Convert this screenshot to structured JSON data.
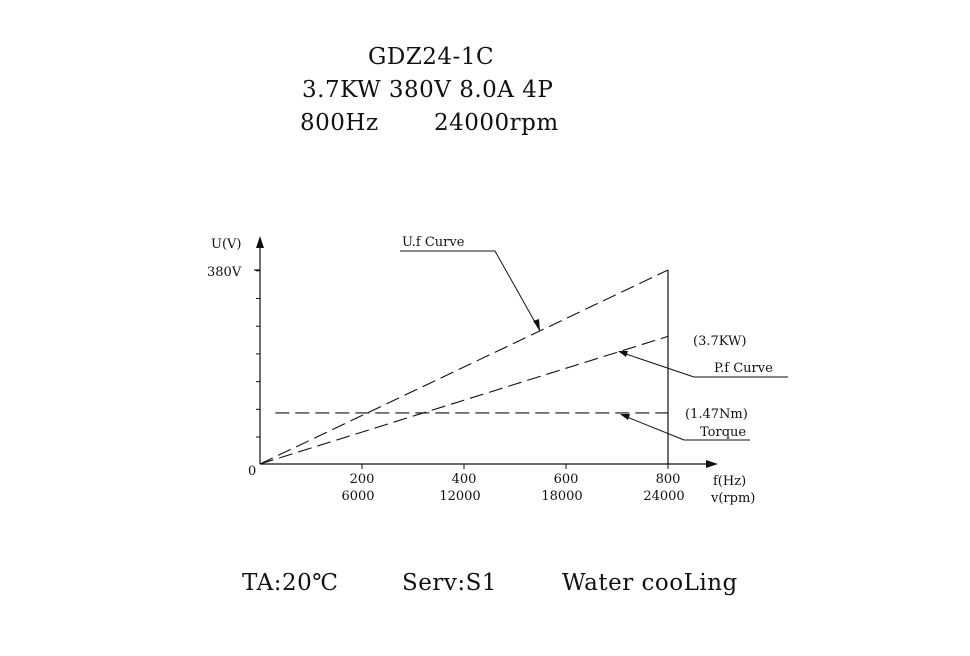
{
  "header": {
    "model": "GDZ24-1C",
    "spec": "3.7KW 380V 8.0A 4P",
    "frequency": "800Hz",
    "speed": "24000rpm"
  },
  "footer": {
    "ambient": "TA:20℃",
    "service": "Serv:S1",
    "cooling": "Water cooLing"
  },
  "chart_data": {
    "type": "line",
    "ylabel": "U(V)",
    "y_tick_label": "380V",
    "origin_label": "0",
    "x_frequency": [
      200,
      400,
      600,
      800
    ],
    "x_speed": [
      6000,
      12000,
      18000,
      24000
    ],
    "xlabel_frequency": "f(Hz)",
    "xlabel_speed": "v(rpm)",
    "xlim": [
      0,
      800
    ],
    "ylim": [
      0,
      380
    ],
    "series": [
      {
        "name": "U.f Curve",
        "x": [
          0,
          800
        ],
        "y": [
          0,
          380
        ]
      },
      {
        "name": "P.f Curve",
        "value_label": "(3.7KW)",
        "x": [
          0,
          800
        ],
        "y": [
          0,
          250
        ]
      },
      {
        "name": "Torque",
        "value_label": "(1.47Nm)",
        "x": [
          30,
          800
        ],
        "y": [
          100,
          100
        ]
      }
    ],
    "line_style": "dashed",
    "color": "#111111"
  }
}
